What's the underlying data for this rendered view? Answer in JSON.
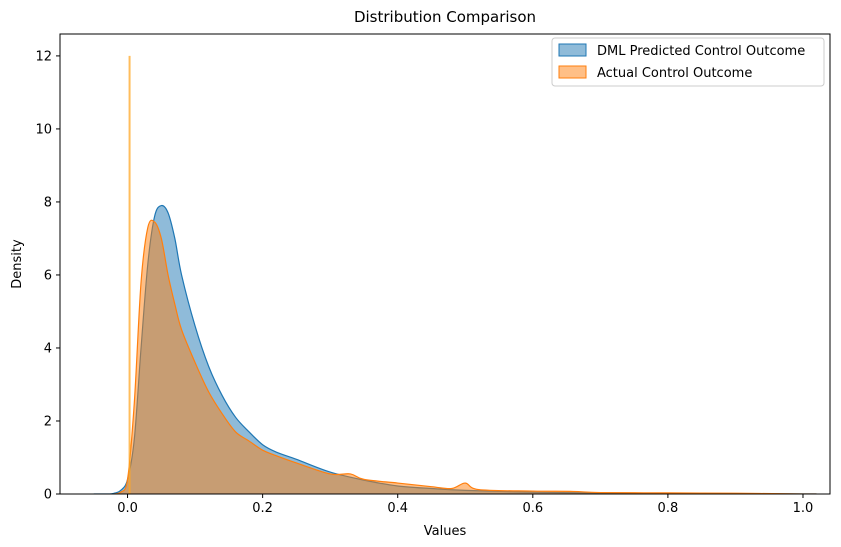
{
  "chart_data": {
    "type": "area",
    "title": "Distribution Comparison",
    "xlabel": "Values",
    "ylabel": "Density",
    "xlim": [
      -0.1,
      1.04
    ],
    "ylim": [
      0,
      12.6
    ],
    "x_ticks": [
      0.0,
      0.2,
      0.4,
      0.6,
      0.8,
      1.0
    ],
    "x_tick_labels": [
      "0.0",
      "0.2",
      "0.4",
      "0.6",
      "0.8",
      "1.0"
    ],
    "y_ticks": [
      0,
      2,
      4,
      6,
      8,
      10,
      12
    ],
    "y_tick_labels": [
      "0",
      "2",
      "4",
      "6",
      "8",
      "10",
      "12"
    ],
    "grid": false,
    "legend_position": "top-right",
    "series": [
      {
        "name": "DML Predicted Control Outcome",
        "color": "#1f77b4",
        "fill_color": "#1f77b4",
        "x": [
          -0.05,
          -0.03,
          -0.02,
          -0.01,
          0.0,
          0.01,
          0.02,
          0.03,
          0.04,
          0.05,
          0.06,
          0.07,
          0.08,
          0.1,
          0.12,
          0.14,
          0.16,
          0.18,
          0.2,
          0.22,
          0.25,
          0.3,
          0.35,
          0.4,
          0.45,
          0.5,
          0.6,
          0.7,
          0.8,
          0.9,
          1.0,
          1.02
        ],
        "y": [
          0.0,
          0.0,
          0.02,
          0.1,
          0.4,
          1.5,
          4.0,
          6.3,
          7.6,
          7.9,
          7.7,
          7.0,
          6.0,
          4.6,
          3.5,
          2.7,
          2.1,
          1.7,
          1.35,
          1.15,
          0.95,
          0.6,
          0.38,
          0.22,
          0.15,
          0.1,
          0.05,
          0.03,
          0.02,
          0.01,
          0.0,
          0.0
        ]
      },
      {
        "name": "Actual Control Outcome",
        "color": "#ff7f0e",
        "fill_color": "#ff7f0e",
        "x": [
          -0.02,
          -0.01,
          0.0,
          0.01,
          0.02,
          0.03,
          0.04,
          0.05,
          0.06,
          0.07,
          0.08,
          0.1,
          0.12,
          0.14,
          0.16,
          0.18,
          0.2,
          0.22,
          0.25,
          0.3,
          0.33,
          0.35,
          0.4,
          0.45,
          0.48,
          0.5,
          0.52,
          0.6,
          0.66,
          0.7,
          0.8,
          0.9,
          1.0,
          1.02
        ],
        "y": [
          0.0,
          0.05,
          0.4,
          2.5,
          5.8,
          7.3,
          7.45,
          7.0,
          6.0,
          5.2,
          4.5,
          3.6,
          2.8,
          2.2,
          1.7,
          1.45,
          1.2,
          1.05,
          0.85,
          0.55,
          0.55,
          0.4,
          0.3,
          0.2,
          0.15,
          0.3,
          0.12,
          0.08,
          0.07,
          0.04,
          0.03,
          0.02,
          0.0,
          0.0
        ]
      }
    ],
    "spike": {
      "x": 0.003,
      "y": 12.0,
      "color": "#ffa726"
    }
  }
}
